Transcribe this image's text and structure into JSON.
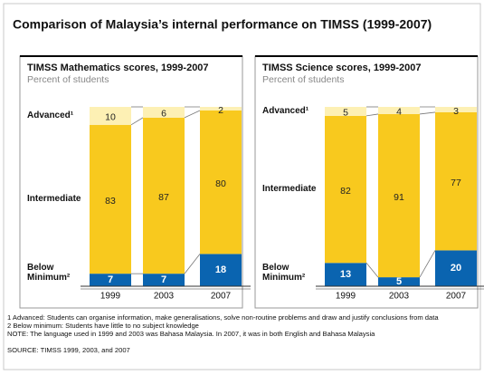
{
  "title": "Comparison of Malaysia’s internal performance on TIMSS (1999-2007)",
  "chart_data": [
    {
      "type": "bar",
      "stacked": true,
      "title": "TIMSS Mathematics scores, 1999-2007",
      "subtitle": "Percent of students",
      "categories": [
        "1999",
        "2003",
        "2007"
      ],
      "series": [
        {
          "name": "Below Minimum²",
          "color": "#0a64b0",
          "values": [
            7,
            7,
            18
          ]
        },
        {
          "name": "Intermediate",
          "color": "#f8c91e",
          "values": [
            83,
            87,
            80
          ]
        },
        {
          "name": "Advanced¹",
          "color": "#fdf0b4",
          "values": [
            10,
            6,
            2
          ]
        }
      ]
    },
    {
      "type": "bar",
      "stacked": true,
      "title": "TIMSS Science scores, 1999-2007",
      "subtitle": "Percent of students",
      "categories": [
        "1999",
        "2003",
        "2007"
      ],
      "series": [
        {
          "name": "Below Minimum²",
          "color": "#0a64b0",
          "values": [
            13,
            5,
            20
          ]
        },
        {
          "name": "Intermediate",
          "color": "#f8c91e",
          "values": [
            82,
            91,
            77
          ]
        },
        {
          "name": "Advanced¹",
          "color": "#fdf0b4",
          "values": [
            5,
            4,
            3
          ]
        }
      ]
    }
  ],
  "footnotes": [
    "1 Advanced: Students can organise information, make generalisations, solve non-routine problems and draw and justify conclusions from data",
    "2 Below minimum: Students have little to no subject knowledge",
    "NOTE: The language used in 1999 and 2003 was Bahasa Malaysia. In 2007, it was in both English and Bahasa Malaysia"
  ],
  "source": "SOURCE: TIMSS 1999, 2003, and 2007"
}
